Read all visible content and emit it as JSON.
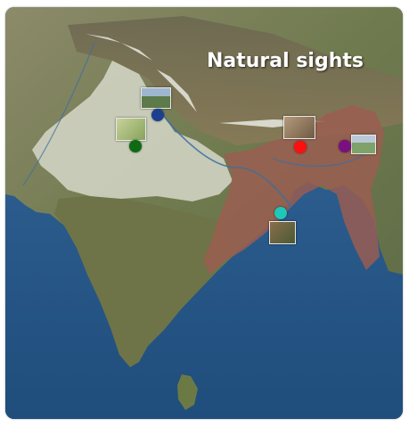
{
  "map": {
    "title": "Natural sights",
    "sights": [
      {
        "id": "kashmir",
        "color": "#1c3f8f",
        "icon": "valley-photo-icon"
      },
      {
        "id": "corbett",
        "color": "#0e6b14",
        "icon": "tiger-photo-icon"
      },
      {
        "id": "kaziranga",
        "color": "#ff1010",
        "icon": "rhino-photo-icon"
      },
      {
        "id": "manas",
        "color": "#7a1080",
        "icon": "wildlife-photo-icon"
      },
      {
        "id": "sundarbans",
        "color": "#1fc7b8",
        "icon": "deer-photo-icon"
      }
    ],
    "colors": {
      "sea": "#2a5a8a",
      "land": "#7e8a5c",
      "highlight_north": "#d6d9c9",
      "highlight_east": "#9a5a4e"
    }
  }
}
